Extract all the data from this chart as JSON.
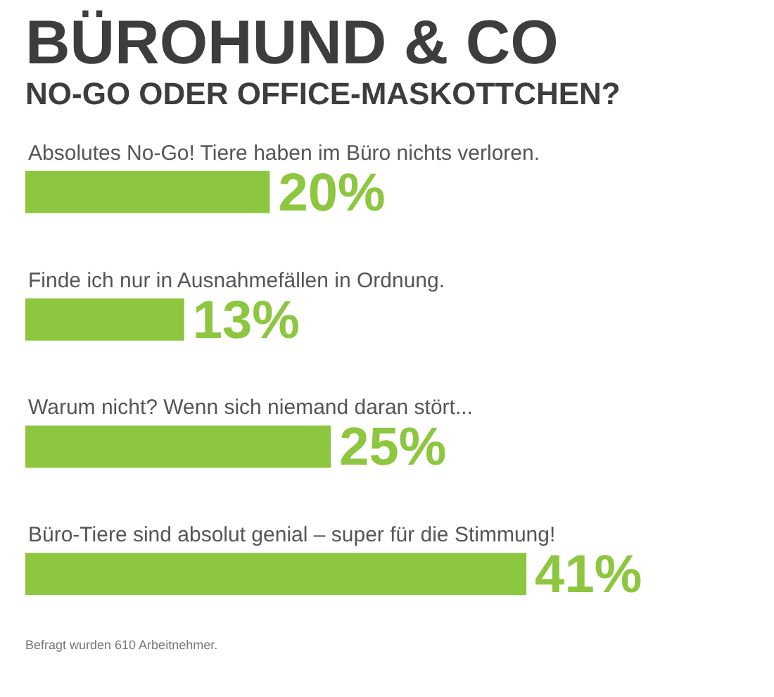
{
  "chart_data": {
    "type": "bar",
    "orientation": "horizontal",
    "title": "BÜROHUND & CO",
    "subtitle": "NO-GO ODER OFFICE-MASKOTTCHEN?",
    "categories": [
      "Absolutes No-Go! Tiere haben im Büro nichts verloren.",
      "Finde ich nur in Ausnahmefällen in Ordnung.",
      "Warum nicht? Wenn sich niemand daran stört...",
      "Büro-Tiere sind absolut genial – super für die Stimmung!"
    ],
    "values": [
      20,
      13,
      25,
      41
    ],
    "value_labels": [
      "20%",
      "13%",
      "25%",
      "41%"
    ],
    "color": "#8dc63f",
    "annotations": [
      "Befragt wurden 610 Arbeitnehmer."
    ]
  }
}
